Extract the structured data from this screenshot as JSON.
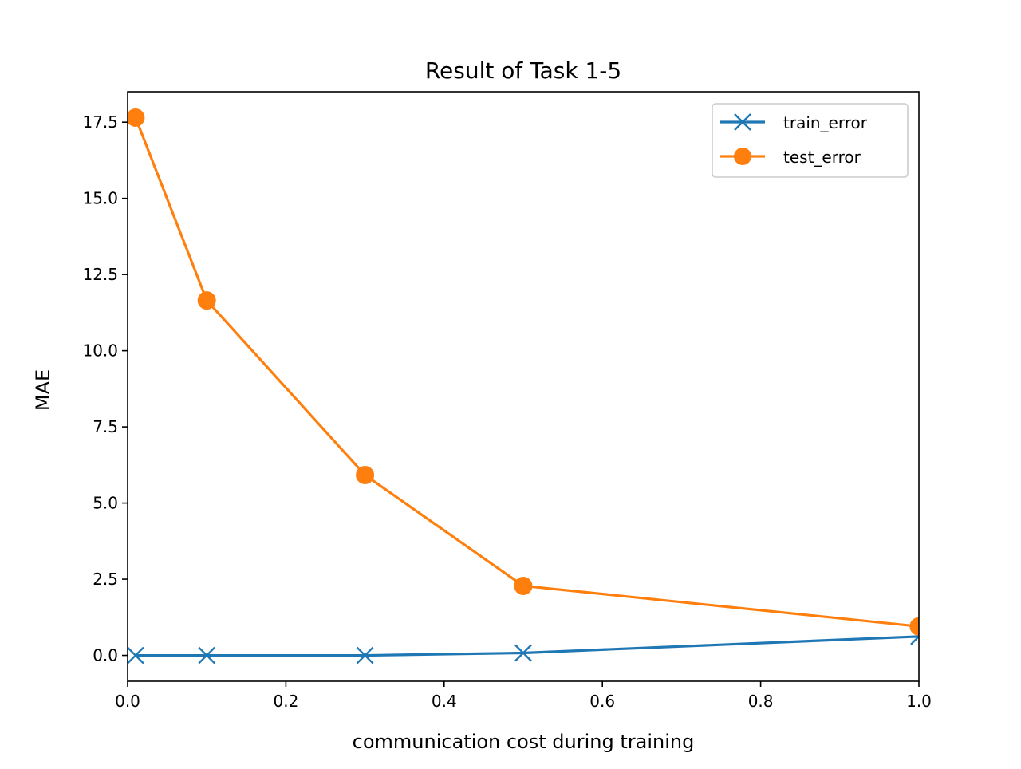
{
  "chart_data": {
    "type": "line",
    "title": "Result of Task 1-5",
    "xlabel": "communication cost during training",
    "ylabel": "MAE",
    "xlim": [
      0.0,
      1.0
    ],
    "ylim": [
      -0.85,
      18.5
    ],
    "grid": false,
    "legend_position": "top-right",
    "x_ticks": [
      {
        "value": 0.0,
        "label": "0.0"
      },
      {
        "value": 0.2,
        "label": "0.2"
      },
      {
        "value": 0.4,
        "label": "0.4"
      },
      {
        "value": 0.6,
        "label": "0.6"
      },
      {
        "value": 0.8,
        "label": "0.8"
      },
      {
        "value": 1.0,
        "label": "1.0"
      }
    ],
    "y_ticks": [
      {
        "value": 0.0,
        "label": "0.0"
      },
      {
        "value": 2.5,
        "label": "2.5"
      },
      {
        "value": 5.0,
        "label": "5.0"
      },
      {
        "value": 7.5,
        "label": "7.5"
      },
      {
        "value": 10.0,
        "label": "10.0"
      },
      {
        "value": 12.5,
        "label": "12.5"
      },
      {
        "value": 15.0,
        "label": "15.0"
      },
      {
        "value": 17.5,
        "label": "17.5"
      }
    ],
    "x": [
      0.01,
      0.1,
      0.3,
      0.5,
      1.0
    ],
    "series": [
      {
        "name": "train_error",
        "color": "#1f77b4",
        "marker": "x",
        "values": [
          0.0,
          0.0,
          0.0,
          0.08,
          0.62
        ]
      },
      {
        "name": "test_error",
        "color": "#ff7f0e",
        "marker": "circle",
        "values": [
          17.65,
          11.65,
          5.92,
          2.28,
          0.95
        ]
      }
    ]
  }
}
